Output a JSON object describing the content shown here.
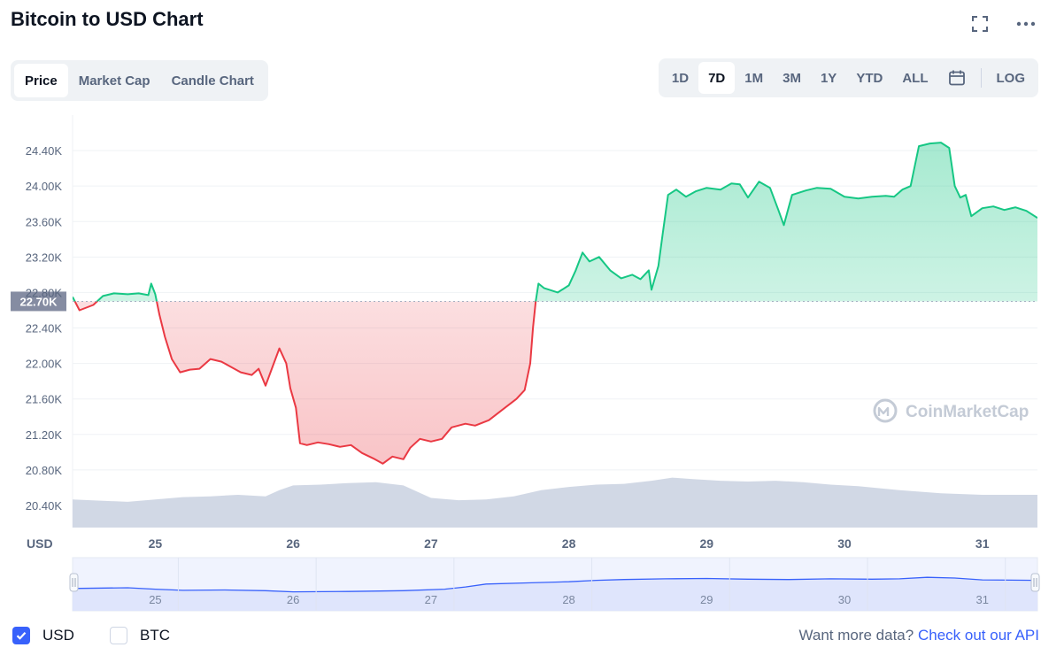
{
  "header": {
    "title": "Bitcoin to USD Chart"
  },
  "icons": {
    "fullscreen": "fullscreen-icon",
    "more": "more-horizontal-icon",
    "calendar": "calendar-icon",
    "watermark": "coinmarketcap-logo"
  },
  "tabs": [
    {
      "label": "Price",
      "active": true
    },
    {
      "label": "Market Cap",
      "active": false
    },
    {
      "label": "Candle Chart",
      "active": false
    }
  ],
  "ranges": [
    {
      "label": "1D",
      "active": false
    },
    {
      "label": "7D",
      "active": true
    },
    {
      "label": "1M",
      "active": false
    },
    {
      "label": "3M",
      "active": false
    },
    {
      "label": "1Y",
      "active": false
    },
    {
      "label": "YTD",
      "active": false
    },
    {
      "label": "ALL",
      "active": false
    }
  ],
  "log_label": "LOG",
  "watermark_text": "CoinMarketCap",
  "footer": {
    "usd_label": "USD",
    "btc_label": "BTC",
    "more_text": "Want more data?",
    "api_link": "Check out our API"
  },
  "colors": {
    "up": "#16c784",
    "down": "#ea3943",
    "volume": "#cfd6e4",
    "accent": "#3861fb",
    "navigator_fill": "#dde3fc",
    "navigator_line": "#3861fb"
  },
  "chart_data": {
    "type": "area",
    "title": "",
    "currency_label": "USD",
    "y_ticks": [
      "24.40K",
      "24.00K",
      "23.60K",
      "23.20K",
      "22.80K",
      "22.40K",
      "22.00K",
      "21.60K",
      "21.20K",
      "20.80K",
      "20.40K"
    ],
    "y_tick_values": [
      24400,
      24000,
      23600,
      23200,
      22800,
      22400,
      22000,
      21600,
      21200,
      20800,
      20400
    ],
    "ylim": [
      20150,
      24800
    ],
    "x_ticks": [
      "25",
      "26",
      "27",
      "28",
      "29",
      "30",
      "31"
    ],
    "x_tick_values": [
      25,
      26,
      27,
      28,
      29,
      30,
      31
    ],
    "xlim": [
      24.4,
      31.4
    ],
    "baseline": {
      "value": 22700,
      "label": "22.70K"
    },
    "grid": true,
    "series": [
      {
        "values": [
          [
            24.4,
            22750
          ],
          [
            24.45,
            22600
          ],
          [
            24.55,
            22660
          ],
          [
            24.62,
            22760
          ],
          [
            24.7,
            22790
          ],
          [
            24.8,
            22780
          ],
          [
            24.88,
            22790
          ],
          [
            24.95,
            22770
          ],
          [
            24.97,
            22900
          ],
          [
            25.0,
            22780
          ],
          [
            25.03,
            22550
          ],
          [
            25.07,
            22300
          ],
          [
            25.12,
            22050
          ],
          [
            25.18,
            21900
          ],
          [
            25.25,
            21930
          ],
          [
            25.32,
            21940
          ],
          [
            25.4,
            22050
          ],
          [
            25.48,
            22020
          ],
          [
            25.55,
            21960
          ],
          [
            25.62,
            21900
          ],
          [
            25.7,
            21870
          ],
          [
            25.75,
            21940
          ],
          [
            25.8,
            21750
          ],
          [
            25.85,
            21960
          ],
          [
            25.9,
            22170
          ],
          [
            25.95,
            22000
          ],
          [
            25.98,
            21720
          ],
          [
            26.02,
            21500
          ],
          [
            26.05,
            21100
          ],
          [
            26.1,
            21080
          ],
          [
            26.18,
            21110
          ],
          [
            26.26,
            21090
          ],
          [
            26.34,
            21060
          ],
          [
            26.42,
            21080
          ],
          [
            26.5,
            20990
          ],
          [
            26.58,
            20930
          ],
          [
            26.65,
            20870
          ],
          [
            26.72,
            20950
          ],
          [
            26.8,
            20920
          ],
          [
            26.85,
            21050
          ],
          [
            26.92,
            21150
          ],
          [
            27.0,
            21120
          ],
          [
            27.08,
            21150
          ],
          [
            27.15,
            21280
          ],
          [
            27.25,
            21320
          ],
          [
            27.32,
            21300
          ],
          [
            27.42,
            21360
          ],
          [
            27.52,
            21480
          ],
          [
            27.62,
            21600
          ],
          [
            27.68,
            21700
          ],
          [
            27.72,
            22000
          ],
          [
            27.74,
            22400
          ],
          [
            27.76,
            22700
          ],
          [
            27.78,
            22900
          ],
          [
            27.82,
            22850
          ],
          [
            27.86,
            22830
          ],
          [
            27.92,
            22800
          ],
          [
            28.0,
            22880
          ],
          [
            28.05,
            23050
          ],
          [
            28.1,
            23250
          ],
          [
            28.15,
            23150
          ],
          [
            28.22,
            23200
          ],
          [
            28.3,
            23050
          ],
          [
            28.38,
            22960
          ],
          [
            28.46,
            23000
          ],
          [
            28.52,
            22950
          ],
          [
            28.58,
            23050
          ],
          [
            28.6,
            22830
          ],
          [
            28.65,
            23100
          ],
          [
            28.68,
            23450
          ],
          [
            28.72,
            23900
          ],
          [
            28.78,
            23960
          ],
          [
            28.85,
            23880
          ],
          [
            28.92,
            23940
          ],
          [
            29.0,
            23980
          ],
          [
            29.1,
            23960
          ],
          [
            29.18,
            24030
          ],
          [
            29.24,
            24020
          ],
          [
            29.3,
            23870
          ],
          [
            29.38,
            24050
          ],
          [
            29.46,
            23980
          ],
          [
            29.52,
            23730
          ],
          [
            29.56,
            23560
          ],
          [
            29.62,
            23900
          ],
          [
            29.72,
            23950
          ],
          [
            29.8,
            23980
          ],
          [
            29.9,
            23970
          ],
          [
            30.0,
            23880
          ],
          [
            30.1,
            23860
          ],
          [
            30.2,
            23880
          ],
          [
            30.3,
            23890
          ],
          [
            30.36,
            23880
          ],
          [
            30.42,
            23960
          ],
          [
            30.48,
            24000
          ],
          [
            30.54,
            24450
          ],
          [
            30.62,
            24480
          ],
          [
            30.7,
            24490
          ],
          [
            30.76,
            24430
          ],
          [
            30.8,
            24000
          ],
          [
            30.84,
            23870
          ],
          [
            30.88,
            23900
          ],
          [
            30.92,
            23660
          ],
          [
            31.0,
            23750
          ],
          [
            31.08,
            23770
          ],
          [
            31.16,
            23730
          ],
          [
            31.24,
            23760
          ],
          [
            31.32,
            23720
          ],
          [
            31.4,
            23640
          ]
        ]
      }
    ],
    "volume": {
      "label": "volume",
      "values": [
        [
          24.4,
          0.36
        ],
        [
          24.8,
          0.33
        ],
        [
          25.0,
          0.36
        ],
        [
          25.2,
          0.39
        ],
        [
          25.4,
          0.4
        ],
        [
          25.6,
          0.42
        ],
        [
          25.8,
          0.4
        ],
        [
          25.9,
          0.48
        ],
        [
          26.0,
          0.54
        ],
        [
          26.2,
          0.55
        ],
        [
          26.4,
          0.57
        ],
        [
          26.6,
          0.58
        ],
        [
          26.8,
          0.54
        ],
        [
          27.0,
          0.38
        ],
        [
          27.2,
          0.35
        ],
        [
          27.4,
          0.36
        ],
        [
          27.6,
          0.4
        ],
        [
          27.8,
          0.48
        ],
        [
          28.0,
          0.52
        ],
        [
          28.2,
          0.55
        ],
        [
          28.4,
          0.56
        ],
        [
          28.6,
          0.6
        ],
        [
          28.75,
          0.64
        ],
        [
          28.9,
          0.62
        ],
        [
          29.1,
          0.6
        ],
        [
          29.3,
          0.59
        ],
        [
          29.5,
          0.6
        ],
        [
          29.7,
          0.58
        ],
        [
          29.9,
          0.55
        ],
        [
          30.1,
          0.53
        ],
        [
          30.4,
          0.48
        ],
        [
          30.7,
          0.44
        ],
        [
          31.0,
          0.42
        ],
        [
          31.4,
          0.42
        ]
      ]
    },
    "navigator": {
      "x_ticks": [
        "25",
        "26",
        "27",
        "28",
        "29",
        "30",
        "31"
      ],
      "values": [
        [
          24.4,
          0.6
        ],
        [
          24.8,
          0.62
        ],
        [
          25.0,
          0.58
        ],
        [
          25.2,
          0.55
        ],
        [
          25.5,
          0.56
        ],
        [
          25.8,
          0.54
        ],
        [
          26.0,
          0.51
        ],
        [
          26.4,
          0.52
        ],
        [
          26.8,
          0.54
        ],
        [
          27.1,
          0.58
        ],
        [
          27.25,
          0.64
        ],
        [
          27.4,
          0.72
        ],
        [
          27.7,
          0.75
        ],
        [
          28.0,
          0.78
        ],
        [
          28.2,
          0.82
        ],
        [
          28.4,
          0.84
        ],
        [
          28.7,
          0.86
        ],
        [
          29.0,
          0.87
        ],
        [
          29.3,
          0.85
        ],
        [
          29.6,
          0.84
        ],
        [
          29.9,
          0.86
        ],
        [
          30.2,
          0.85
        ],
        [
          30.4,
          0.86
        ],
        [
          30.6,
          0.9
        ],
        [
          30.8,
          0.88
        ],
        [
          31.0,
          0.83
        ],
        [
          31.4,
          0.82
        ]
      ]
    }
  }
}
